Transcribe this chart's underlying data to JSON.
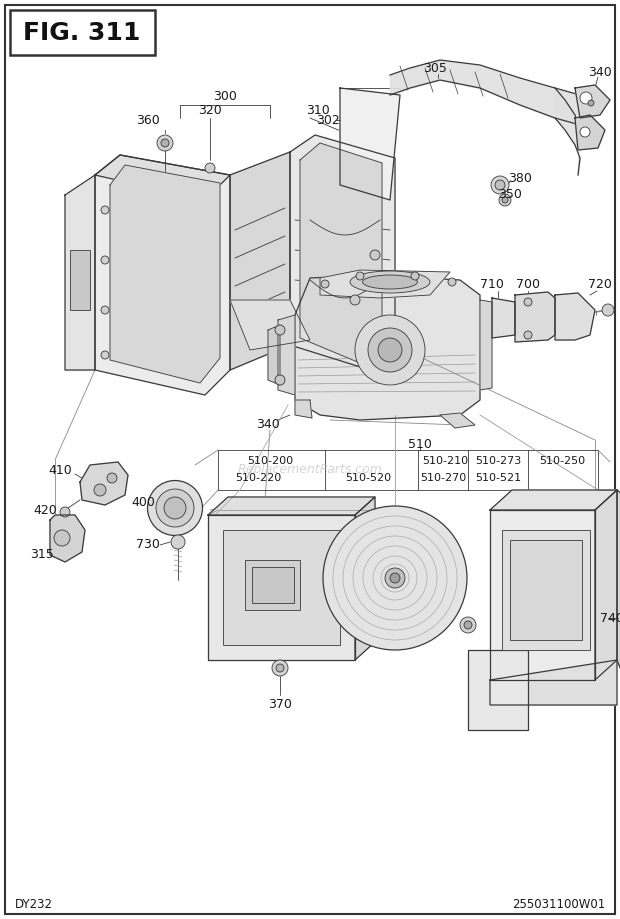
{
  "title": "FIG. 311",
  "bottom_left": "DY232",
  "bottom_right": "255031100W01",
  "bg_color": "#ffffff",
  "line_color": "#3a3a3a",
  "text_color": "#1a1a1a",
  "watermark": "ReplacementParts.com",
  "fig_width": 6.2,
  "fig_height": 9.19,
  "dpi": 100
}
